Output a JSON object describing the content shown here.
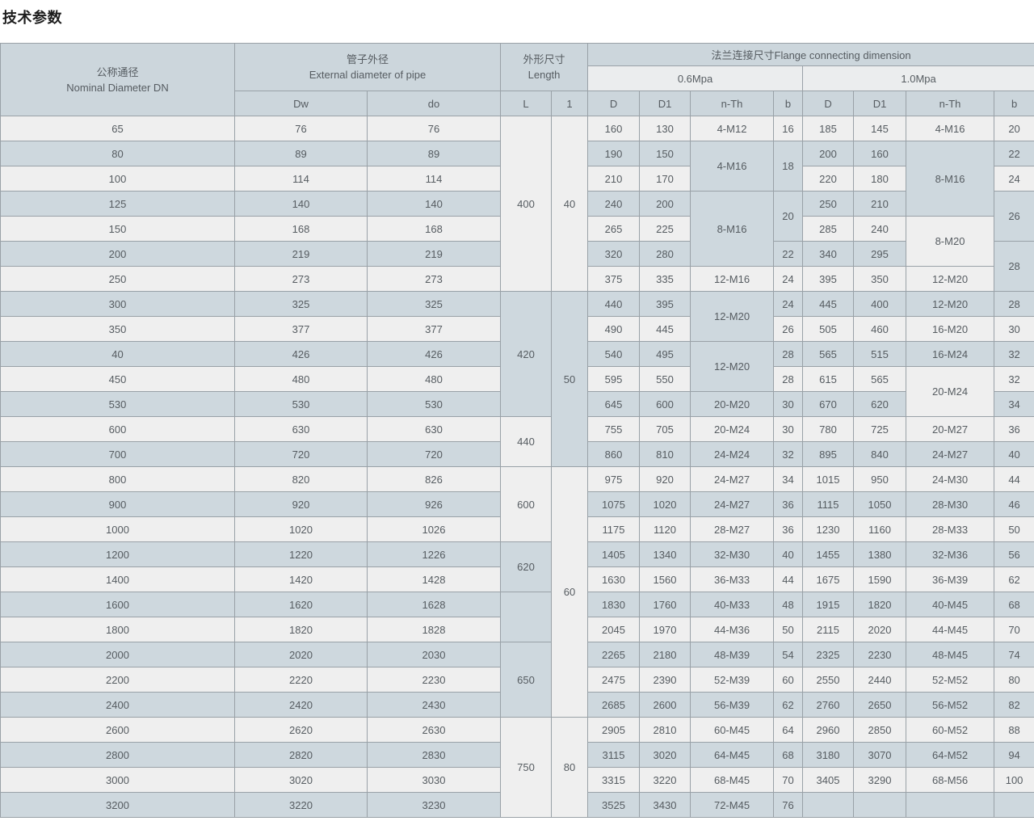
{
  "title": "技术参数",
  "colors": {
    "header_bg": "#ccd6dc",
    "pressure_band_bg": "#ebedee",
    "row_light": "#efefef",
    "row_blue": "#ced8de",
    "border": "#99a1a7",
    "cell_text": "#565c61",
    "title_text": "#1c1c1c"
  },
  "header": {
    "dn_cn": "公称通径",
    "dn_en": "Nominal Diameter DN",
    "pipe_cn": "管子外径",
    "pipe_en": "External diameter of pipe",
    "length_cn": "外形尺寸",
    "length_en": "Length",
    "flange": "法兰连接尺寸Flange connecting dimension",
    "p06": "0.6Mpa",
    "p10": "1.0Mpa",
    "sub": [
      "Dw",
      "do",
      "L",
      "1",
      "D",
      "D1",
      "n-Th",
      "b",
      "D",
      "D1",
      "n-Th",
      "b"
    ]
  },
  "table": {
    "rows": [
      [
        "65",
        "76",
        "76",
        {
          "t": "400",
          "rs": 7,
          "bg": "l"
        },
        {
          "t": "40",
          "rs": 7,
          "bg": "l"
        },
        "160",
        "130",
        "4-M12",
        "16",
        "185",
        "145",
        "4-M16",
        "20"
      ],
      [
        "80",
        "89",
        "89",
        "190",
        "150",
        {
          "t": "4-M16",
          "rs": 2,
          "bg": "b"
        },
        {
          "t": "18",
          "rs": 2,
          "bg": "b"
        },
        "200",
        "160",
        {
          "t": "8-M16",
          "rs": 3,
          "bg": "b"
        },
        "22"
      ],
      [
        "100",
        "114",
        "114",
        "210",
        "170",
        "220",
        "180",
        "24"
      ],
      [
        "125",
        "140",
        "140",
        "240",
        "200",
        {
          "t": "8-M16",
          "rs": 3,
          "bg": "b"
        },
        {
          "t": "20",
          "rs": 2,
          "bg": "b"
        },
        "250",
        "210",
        {
          "t": "26",
          "rs": 2,
          "bg": "b"
        }
      ],
      [
        "150",
        "168",
        "168",
        "265",
        "225",
        "285",
        "240",
        {
          "t": "8-M20",
          "rs": 2,
          "bg": "l"
        }
      ],
      [
        "200",
        "219",
        "219",
        "320",
        "280",
        "22",
        "340",
        "295",
        {
          "t": "28",
          "rs": 2,
          "bg": "b"
        }
      ],
      [
        "250",
        "273",
        "273",
        "375",
        "335",
        "12-M16",
        "24",
        "395",
        "350",
        "12-M20"
      ],
      [
        "300",
        "325",
        "325",
        {
          "t": "420",
          "rs": 5,
          "bg": "b"
        },
        {
          "t": "50",
          "rs": 7,
          "bg": "b"
        },
        "440",
        "395",
        {
          "t": "12-M20",
          "rs": 2,
          "bg": "b"
        },
        "24",
        "445",
        "400",
        "12-M20",
        "28"
      ],
      [
        "350",
        "377",
        "377",
        "490",
        "445",
        "26",
        "505",
        "460",
        "16-M20",
        "30"
      ],
      [
        "40",
        "426",
        "426",
        "540",
        "495",
        {
          "t": "12-M20",
          "rs": 2,
          "bg": "b"
        },
        "28",
        "565",
        "515",
        "16-M24",
        "32"
      ],
      [
        "450",
        "480",
        "480",
        "595",
        "550",
        "28",
        "615",
        "565",
        {
          "t": "20-M24",
          "rs": 2,
          "bg": "l"
        },
        "32"
      ],
      [
        "530",
        "530",
        "530",
        "645",
        "600",
        "20-M20",
        "30",
        "670",
        "620",
        "34"
      ],
      [
        "600",
        "630",
        "630",
        {
          "t": "440",
          "rs": 2,
          "bg": "l"
        },
        "755",
        "705",
        "20-M24",
        "30",
        "780",
        "725",
        "20-M27",
        "36"
      ],
      [
        "700",
        "720",
        "720",
        "860",
        "810",
        "24-M24",
        "32",
        "895",
        "840",
        "24-M27",
        "40"
      ],
      [
        "800",
        "820",
        "826",
        {
          "t": "600",
          "rs": 3,
          "bg": "l"
        },
        {
          "t": "60",
          "rs": 10,
          "bg": "l"
        },
        "975",
        "920",
        "24-M27",
        "34",
        "1015",
        "950",
        "24-M30",
        "44"
      ],
      [
        "900",
        "920",
        "926",
        "1075",
        "1020",
        "24-M27",
        "36",
        "1115",
        "1050",
        "28-M30",
        "46"
      ],
      [
        "1000",
        "1020",
        "1026",
        "1175",
        "1120",
        "28-M27",
        "36",
        "1230",
        "1160",
        "28-M33",
        "50"
      ],
      [
        "1200",
        "1220",
        "1226",
        {
          "t": "620",
          "rs": 2,
          "bg": "b"
        },
        "1405",
        "1340",
        "32-M30",
        "40",
        "1455",
        "1380",
        "32-M36",
        "56"
      ],
      [
        "1400",
        "1420",
        "1428",
        "1630",
        "1560",
        "36-M33",
        "44",
        "1675",
        "1590",
        "36-M39",
        "62"
      ],
      [
        "1600",
        "1620",
        "1628",
        {
          "t": "",
          "rs": 2,
          "bg": "b"
        },
        "1830",
        "1760",
        "40-M33",
        "48",
        "1915",
        "1820",
        "40-M45",
        "68"
      ],
      [
        "1800",
        "1820",
        "1828",
        "2045",
        "1970",
        "44-M36",
        "50",
        "2115",
        "2020",
        "44-M45",
        "70"
      ],
      [
        "2000",
        "2020",
        "2030",
        {
          "t": "650",
          "rs": 3,
          "bg": "b"
        },
        "2265",
        "2180",
        "48-M39",
        "54",
        "2325",
        "2230",
        "48-M45",
        "74"
      ],
      [
        "2200",
        "2220",
        "2230",
        "2475",
        "2390",
        "52-M39",
        "60",
        "2550",
        "2440",
        "52-M52",
        "80"
      ],
      [
        "2400",
        "2420",
        "2430",
        "2685",
        "2600",
        "56-M39",
        "62",
        "2760",
        "2650",
        "56-M52",
        "82"
      ],
      [
        "2600",
        "2620",
        "2630",
        {
          "t": "750",
          "rs": 4,
          "bg": "l"
        },
        {
          "t": "80",
          "rs": 4,
          "bg": "l"
        },
        "2905",
        "2810",
        "60-M45",
        "64",
        "2960",
        "2850",
        "60-M52",
        "88"
      ],
      [
        "2800",
        "2820",
        "2830",
        "3115",
        "3020",
        "64-M45",
        "68",
        "3180",
        "3070",
        "64-M52",
        "94"
      ],
      [
        "3000",
        "3020",
        "3030",
        "3315",
        "3220",
        "68-M45",
        "70",
        "3405",
        "3290",
        "68-M56",
        "100"
      ],
      [
        "3200",
        "3220",
        "3230",
        "3525",
        "3430",
        "72-M45",
        "76",
        "",
        "",
        "",
        ""
      ]
    ]
  }
}
